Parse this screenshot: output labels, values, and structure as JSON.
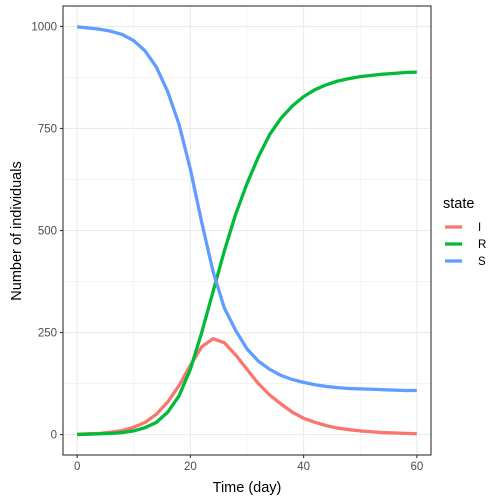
{
  "chart_data": {
    "type": "line",
    "xlabel": "Time (day)",
    "ylabel": "Number of individuals",
    "xlim": [
      -2.5,
      62.5
    ],
    "ylim": [
      -50,
      1050
    ],
    "x_ticks": [
      0,
      20,
      40,
      60
    ],
    "x_tick_labels": [
      "0",
      "20",
      "40",
      "60"
    ],
    "y_ticks": [
      0,
      250,
      500,
      750,
      1000
    ],
    "y_tick_labels": [
      "0",
      "250",
      "500",
      "750",
      "1000"
    ],
    "grid": true,
    "legend": {
      "title": "state",
      "position": "right"
    },
    "x": [
      0,
      2,
      4,
      6,
      8,
      10,
      12,
      14,
      16,
      18,
      20,
      22,
      24,
      26,
      28,
      30,
      32,
      34,
      36,
      38,
      40,
      42,
      44,
      46,
      48,
      50,
      52,
      54,
      56,
      58,
      60
    ],
    "series": [
      {
        "name": "I",
        "color": "#F8766D",
        "values": [
          1,
          2,
          3,
          6,
          10,
          18,
          30,
          50,
          80,
          120,
          170,
          215,
          235,
          225,
          195,
          160,
          125,
          97,
          75,
          55,
          40,
          30,
          22,
          16,
          12,
          9,
          7,
          5,
          4,
          3,
          2
        ]
      },
      {
        "name": "R",
        "color": "#00BA38",
        "values": [
          0,
          1,
          2,
          3,
          5,
          9,
          17,
          30,
          55,
          95,
          160,
          250,
          350,
          450,
          540,
          615,
          680,
          735,
          775,
          805,
          828,
          845,
          857,
          866,
          872,
          877,
          880,
          883,
          885,
          887,
          888
        ]
      },
      {
        "name": "S",
        "color": "#619CFF",
        "values": [
          999,
          996,
          993,
          988,
          980,
          965,
          940,
          900,
          840,
          760,
          650,
          520,
          400,
          310,
          255,
          210,
          180,
          160,
          145,
          135,
          128,
          122,
          118,
          115,
          113,
          112,
          111,
          110,
          109,
          108,
          108
        ]
      }
    ]
  }
}
